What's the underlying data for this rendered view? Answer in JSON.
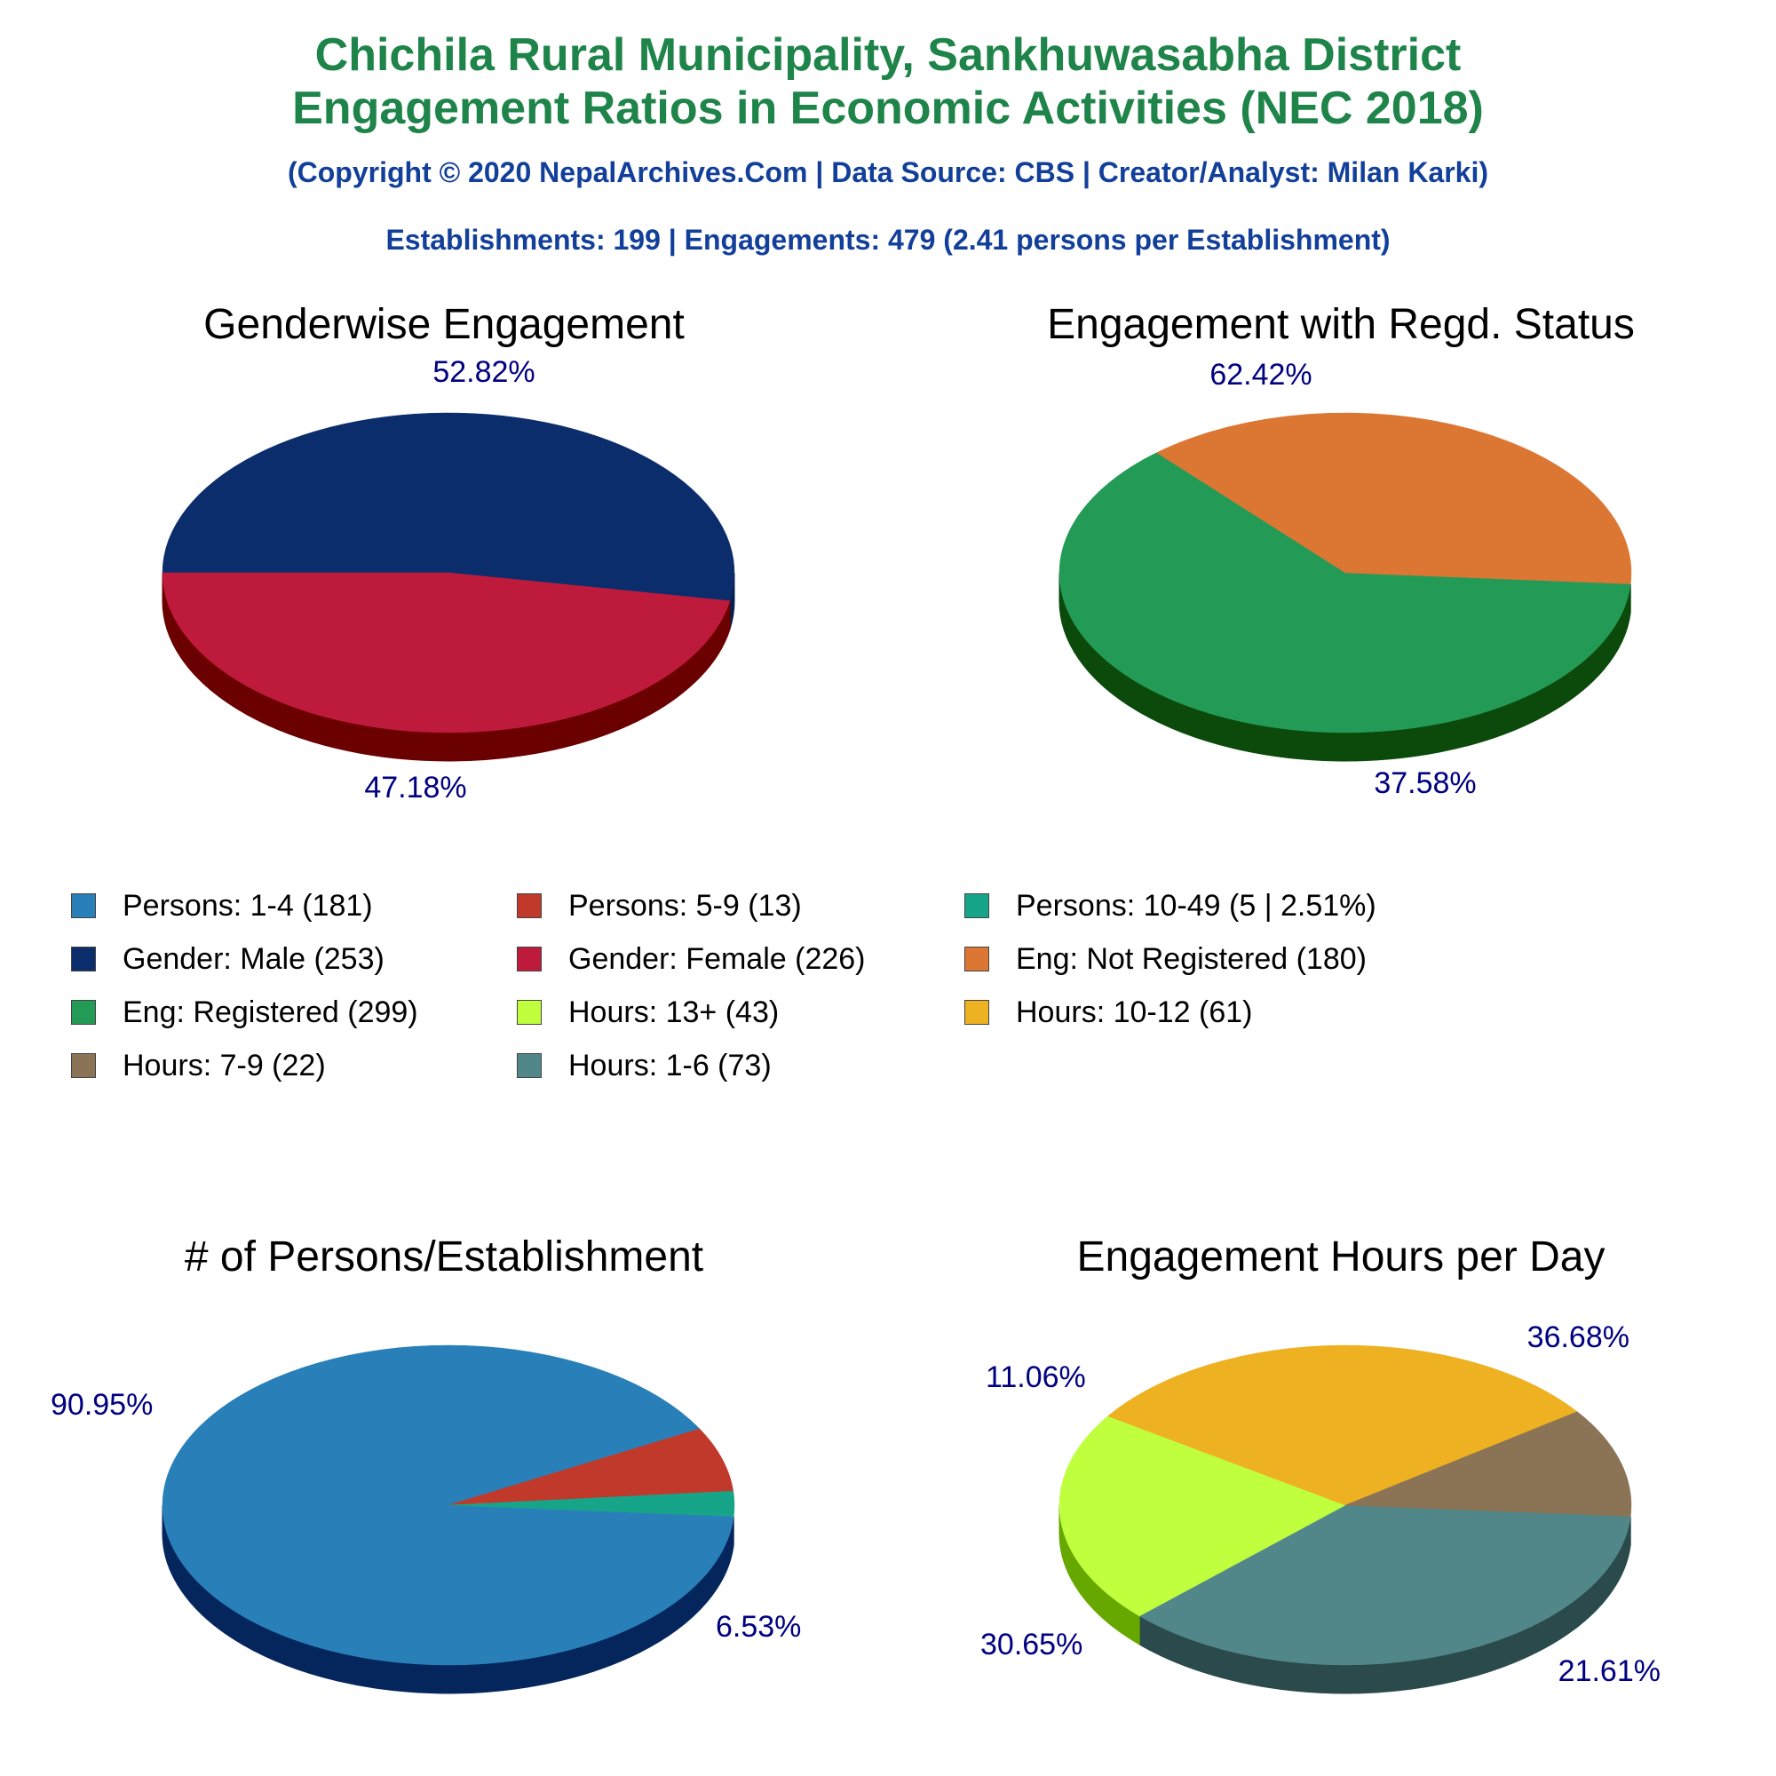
{
  "header": {
    "title_line1": "Chichila Rural Municipality, Sankhuwasabha District",
    "title_line2": "Engagement Ratios in Economic Activities (NEC 2018)",
    "credit": "(Copyright © 2020 NepalArchives.Com | Data Source: CBS | Creator/Analyst: Milan Karki)",
    "summary": "Establishments: 199 | Engagements: 479 (2.41 persons per Establishment)"
  },
  "chart_data": [
    {
      "type": "pie",
      "title": "Genderwise Engagement",
      "slices": [
        {
          "label": "Gender: Male",
          "value": 253,
          "percent_label": "52.82%",
          "color": "#0b2d6b",
          "side": "#07204d"
        },
        {
          "label": "Gender: Female",
          "value": 226,
          "percent_label": "47.18%",
          "color": "#be1a3c",
          "side": "#6b0000"
        }
      ]
    },
    {
      "type": "pie",
      "title": "Engagement with Regd. Status",
      "slices": [
        {
          "label": "Eng: Registered",
          "value": 299,
          "percent_label": "62.42%",
          "color": "#239b56",
          "side": "#0b4a0b"
        },
        {
          "label": "Eng: Not Registered",
          "value": 180,
          "percent_label": "37.58%",
          "color": "#dc7633",
          "side": "#7b1a00"
        }
      ]
    },
    {
      "type": "pie",
      "title": "# of Persons/Establishment",
      "slices": [
        {
          "label": "Persons: 1-4",
          "value": 181,
          "percent_label": "90.95%",
          "color": "#2980b9",
          "side": "#04265c"
        },
        {
          "label": "Persons: 5-9",
          "value": 13,
          "percent_label": "6.53%",
          "color": "#c0392b",
          "side": "#6b0000"
        },
        {
          "label": "Persons: 10-49",
          "value": 5,
          "percent_label": "",
          "color": "#17a589",
          "side": "#075545"
        }
      ]
    },
    {
      "type": "pie",
      "title": "Engagement Hours per Day",
      "slices": [
        {
          "label": "Hours: 1-6",
          "value": 73,
          "percent_label": "36.68%",
          "color": "#528789",
          "side": "#2a4a4c"
        },
        {
          "label": "Hours: 13+",
          "value": 43,
          "percent_label": "21.61%",
          "color": "#c0ff3e",
          "side": "#66a800"
        },
        {
          "label": "Hours: 10-12",
          "value": 61,
          "percent_label": "30.65%",
          "color": "#edb121",
          "side": "#8f5a00"
        },
        {
          "label": "Hours: 7-9",
          "value": 22,
          "percent_label": "11.06%",
          "color": "#8b7355",
          "side": "#4a3a25"
        }
      ]
    }
  ],
  "legend": [
    {
      "label": "Persons: 1-4 (181)",
      "color": "#2980b9"
    },
    {
      "label": "Persons: 5-9 (13)",
      "color": "#c0392b"
    },
    {
      "label": "Persons: 10-49 (5 | 2.51%)",
      "color": "#17a589"
    },
    {
      "label": "Gender: Male (253)",
      "color": "#0b2d6b"
    },
    {
      "label": "Gender: Female (226)",
      "color": "#be1a3c"
    },
    {
      "label": "Eng: Not Registered (180)",
      "color": "#dc7633"
    },
    {
      "label": "Eng: Registered (299)",
      "color": "#239b56"
    },
    {
      "label": "Hours: 13+ (43)",
      "color": "#c0ff3e"
    },
    {
      "label": "Hours: 10-12 (61)",
      "color": "#edb121"
    },
    {
      "label": "Hours: 7-9 (22)",
      "color": "#8b7355"
    },
    {
      "label": "Hours: 1-6 (73)",
      "color": "#528789"
    }
  ],
  "colors": {
    "title": "#1e8449",
    "subtitle": "#123f99",
    "percent_label": "#000080"
  }
}
